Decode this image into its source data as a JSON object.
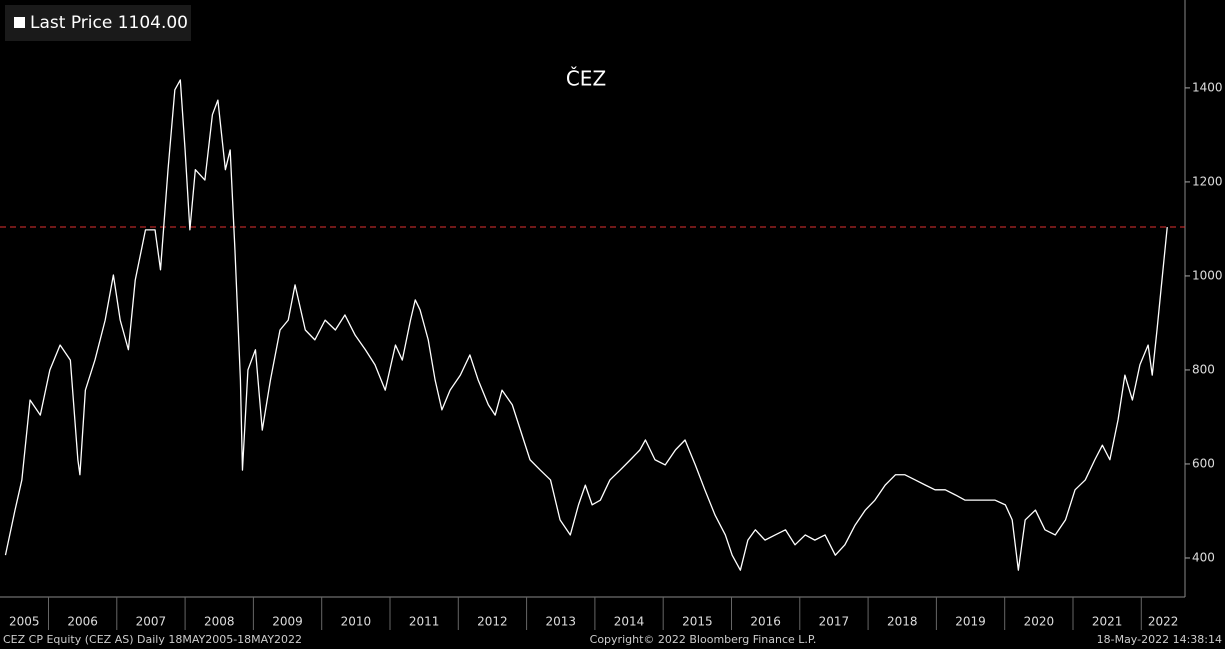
{
  "chart_data": {
    "type": "line",
    "title": "ČEZ",
    "x": [
      2005.37,
      2005.51,
      2005.61,
      2005.73,
      2005.88,
      2006.02,
      2006.17,
      2006.32,
      2006.43,
      2006.46,
      2006.54,
      2006.68,
      2006.83,
      2006.95,
      2007.05,
      2007.17,
      2007.27,
      2007.42,
      2007.56,
      2007.64,
      2007.75,
      2007.85,
      2007.93,
      2008.0,
      2008.07,
      2008.15,
      2008.29,
      2008.4,
      2008.48,
      2008.59,
      2008.66,
      2008.73,
      2008.81,
      2008.84,
      2008.92,
      2009.03,
      2009.13,
      2009.25,
      2009.39,
      2009.51,
      2009.61,
      2009.76,
      2009.9,
      2010.05,
      2010.2,
      2010.34,
      2010.49,
      2010.64,
      2010.78,
      2010.93,
      2011.08,
      2011.18,
      2011.3,
      2011.37,
      2011.44,
      2011.56,
      2011.66,
      2011.76,
      2011.88,
      2012.03,
      2012.17,
      2012.29,
      2012.44,
      2012.54,
      2012.64,
      2012.79,
      2012.91,
      2013.05,
      2013.2,
      2013.35,
      2013.49,
      2013.64,
      2013.76,
      2013.86,
      2013.96,
      2014.08,
      2014.22,
      2014.37,
      2014.52,
      2014.66,
      2014.74,
      2014.88,
      2015.03,
      2015.18,
      2015.32,
      2015.47,
      2015.61,
      2015.76,
      2015.91,
      2016.01,
      2016.13,
      2016.24,
      2016.35,
      2016.49,
      2016.64,
      2016.79,
      2016.93,
      2017.08,
      2017.22,
      2017.37,
      2017.52,
      2017.66,
      2017.81,
      2017.96,
      2018.1,
      2018.25,
      2018.4,
      2018.54,
      2018.69,
      2018.84,
      2018.98,
      2019.13,
      2019.28,
      2019.42,
      2019.57,
      2019.71,
      2019.86,
      2020.01,
      2020.11,
      2020.2,
      2020.3,
      2020.45,
      2020.59,
      2020.74,
      2020.89,
      2021.03,
      2021.18,
      2021.32,
      2021.43,
      2021.54,
      2021.66,
      2021.76,
      2021.87,
      2021.98,
      2022.1,
      2022.16,
      2022.23,
      2022.31,
      2022.38
    ],
    "series": [
      {
        "name": "Last Price",
        "color": "#ffffff",
        "values": [
          406,
          502,
          566,
          736,
          704,
          800,
          853,
          821,
          609,
          577,
          757,
          821,
          906,
          1002,
          906,
          843,
          991,
          1098,
          1098,
          1013,
          1226,
          1396,
          1417,
          1268,
          1098,
          1226,
          1204,
          1343,
          1374,
          1226,
          1268,
          1055,
          779,
          587,
          800,
          843,
          672,
          779,
          885,
          906,
          981,
          885,
          864,
          906,
          885,
          917,
          874,
          843,
          811,
          757,
          853,
          821,
          906,
          949,
          928,
          864,
          779,
          715,
          757,
          789,
          832,
          779,
          726,
          704,
          757,
          726,
          672,
          609,
          587,
          566,
          481,
          449,
          513,
          555,
          513,
          523,
          566,
          587,
          609,
          630,
          651,
          609,
          598,
          630,
          651,
          598,
          545,
          491,
          449,
          406,
          374,
          438,
          460,
          438,
          449,
          460,
          428,
          449,
          438,
          449,
          406,
          428,
          470,
          502,
          523,
          555,
          577,
          577,
          566,
          555,
          545,
          545,
          534,
          523,
          523,
          523,
          523,
          513,
          481,
          374,
          481,
          502,
          460,
          449,
          481,
          545,
          566,
          609,
          640,
          609,
          694,
          789,
          736,
          811,
          853,
          789,
          885,
          1002,
          1104
        ]
      }
    ],
    "last_price": {
      "value": 1104,
      "label": "1104.00",
      "color": "#e03030"
    },
    "xlim": [
      2005.29,
      2022.64
    ],
    "xticks": [
      2005,
      2006,
      2007,
      2008,
      2009,
      2010,
      2011,
      2012,
      2013,
      2014,
      2015,
      2016,
      2017,
      2018,
      2019,
      2020,
      2021,
      2022
    ],
    "ylim": [
      317,
      1587
    ],
    "yticks": [
      400,
      600,
      800,
      1000,
      1200,
      1400
    ],
    "footer": {
      "left": "CEZ CP Equity (CEZ AS)  Daily 18MAY2005-18MAY2022",
      "center": "Copyright© 2022 Bloomberg Finance L.P.",
      "right": "18-May-2022 14:38:14"
    }
  }
}
